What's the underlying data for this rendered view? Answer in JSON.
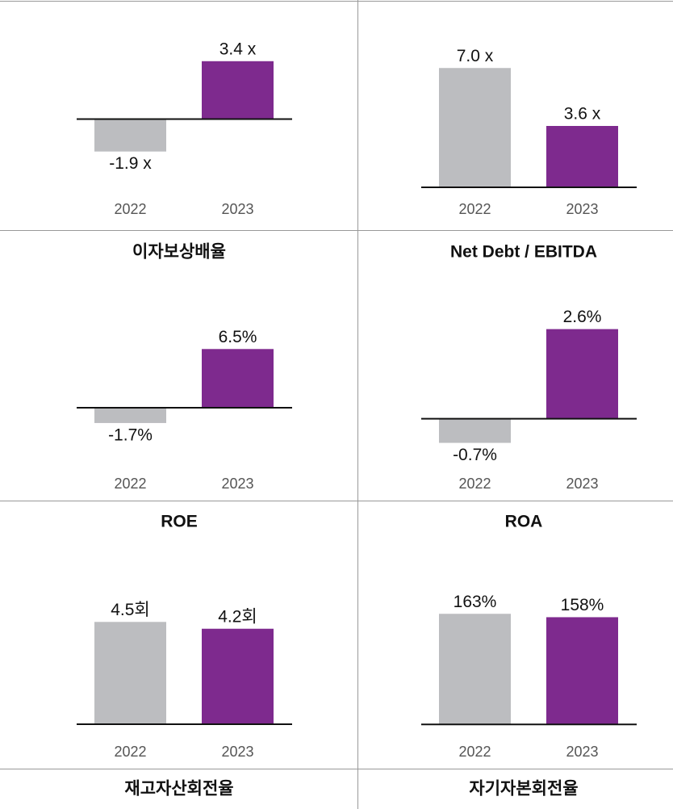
{
  "chart_data": [
    {
      "type": "bar",
      "title": "이자보상배율",
      "categories": [
        "2022",
        "2023"
      ],
      "values": [
        -1.9,
        3.4
      ],
      "value_labels": [
        "-1.9 x",
        "3.4 x"
      ],
      "colors": [
        "#bcbdc0",
        "#7e2a8e"
      ],
      "ylim": [
        -4,
        5
      ]
    },
    {
      "type": "bar",
      "title": "Net Debt / EBITDA",
      "categories": [
        "2022",
        "2023"
      ],
      "values": [
        7.0,
        3.6
      ],
      "value_labels": [
        "7.0 x",
        "3.6 x"
      ],
      "colors": [
        "#bcbdc0",
        "#7e2a8e"
      ],
      "ylim": [
        0,
        9
      ]
    },
    {
      "type": "bar",
      "title": "ROE",
      "categories": [
        "2022",
        "2023"
      ],
      "values": [
        -1.7,
        6.5
      ],
      "value_labels": [
        "-1.7%",
        "6.5%"
      ],
      "colors": [
        "#bcbdc0",
        "#7e2a8e"
      ],
      "ylim": [
        -6,
        11
      ]
    },
    {
      "type": "bar",
      "title": "ROA",
      "categories": [
        "2022",
        "2023"
      ],
      "values": [
        -0.7,
        2.6
      ],
      "value_labels": [
        "-0.7%",
        "2.6%"
      ],
      "colors": [
        "#bcbdc0",
        "#7e2a8e"
      ],
      "ylim": [
        -1.25,
        3.2
      ]
    },
    {
      "type": "bar",
      "title": "재고자산회전율",
      "categories": [
        "2022",
        "2023"
      ],
      "values": [
        4.5,
        4.2
      ],
      "value_labels": [
        "4.5회",
        "4.2회"
      ],
      "colors": [
        "#bcbdc0",
        "#7e2a8e"
      ],
      "ylim": [
        -0.25,
        6.5
      ]
    },
    {
      "type": "bar",
      "title": "자기자본회전율",
      "categories": [
        "2022",
        "2023"
      ],
      "values": [
        163,
        158
      ],
      "value_labels": [
        "163%",
        "158%"
      ],
      "colors": [
        "#bcbdc0",
        "#7e2a8e"
      ],
      "ylim": [
        -8,
        218
      ]
    }
  ]
}
